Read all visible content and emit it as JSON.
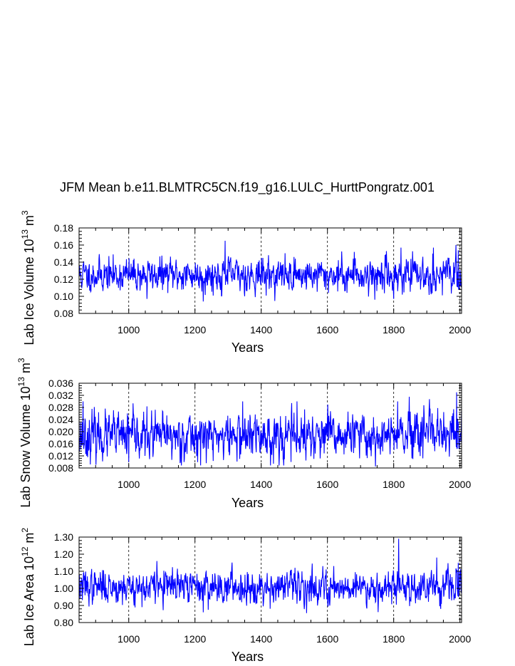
{
  "title": "JFM Mean b.e11.BLMTRC5CN.f19_g16.LULC_HurttPongratz.001",
  "line_color": "#0000ff",
  "chart_data": [
    {
      "type": "line",
      "xlabel": "Years",
      "ylabel_main": "Lab Ice Volume 10",
      "ylabel_exp": "13",
      "ylabel_unit": " m",
      "ylabel_unit_exp": "3",
      "xlim": [
        850,
        2005
      ],
      "ylim": [
        0.08,
        0.18
      ],
      "xticks": [
        1000,
        1200,
        1400,
        1600,
        1800,
        2000
      ],
      "yticks": [
        "0.08",
        "0.10",
        "0.12",
        "0.14",
        "0.16",
        "0.18"
      ],
      "grid_x": true,
      "series": [
        {
          "name": "Lab Ice Volume",
          "mean": 0.125,
          "std": 0.009,
          "x_start": 850,
          "x_end": 2005,
          "seed": 11,
          "peaks": [
            [
              1291,
              0.165
            ],
            [
              1822,
              0.157
            ],
            [
              1920,
              0.157
            ],
            [
              1995,
              0.154
            ],
            [
              1681,
              0.152
            ],
            [
              1225,
              0.094
            ],
            [
              1743,
              0.096
            ],
            [
              1800,
              0.097
            ],
            [
              1055,
              0.097
            ]
          ]
        }
      ]
    },
    {
      "type": "line",
      "xlabel": "Years",
      "ylabel_main": "Lab Snow Volume 10",
      "ylabel_exp": "13",
      "ylabel_unit": " m",
      "ylabel_unit_exp": "3",
      "xlim": [
        850,
        2005
      ],
      "ylim": [
        0.008,
        0.036
      ],
      "xticks": [
        1000,
        1200,
        1400,
        1600,
        1800,
        2000
      ],
      "yticks": [
        "0.008",
        "0.012",
        "0.016",
        "0.020",
        "0.024",
        "0.028",
        "0.032",
        "0.036"
      ],
      "grid_x": true,
      "series": [
        {
          "name": "Lab Snow Volume",
          "mean": 0.0185,
          "std": 0.0035,
          "x_start": 850,
          "x_end": 2005,
          "seed": 23,
          "peaks": [
            [
              1990,
              0.033
            ],
            [
              1812,
              0.03
            ],
            [
              1508,
              0.03
            ],
            [
              1344,
              0.03
            ],
            [
              862,
              0.03
            ],
            [
              1745,
              0.0085
            ],
            [
              1490,
              0.01
            ],
            [
              1000,
              0.01
            ]
          ]
        }
      ]
    },
    {
      "type": "line",
      "xlabel": "Years",
      "ylabel_main": "Lab Ice Area 10",
      "ylabel_exp": "12",
      "ylabel_unit": " m",
      "ylabel_unit_exp": "2",
      "xlim": [
        850,
        2005
      ],
      "ylim": [
        0.8,
        1.3
      ],
      "xticks": [
        1000,
        1200,
        1400,
        1600,
        1800,
        2000
      ],
      "yticks": [
        "0.80",
        "0.90",
        "1.00",
        "1.10",
        "1.20",
        "1.30"
      ],
      "grid_x": true,
      "series": [
        {
          "name": "Lab Ice Area",
          "mean": 1.01,
          "std": 0.045,
          "x_start": 850,
          "x_end": 2005,
          "seed": 37,
          "peaks": [
            [
              1815,
              1.29
            ],
            [
              1930,
              1.18
            ],
            [
              1085,
              1.16
            ],
            [
              1995,
              1.15
            ],
            [
              1225,
              0.86
            ],
            [
              1040,
              0.89
            ]
          ]
        }
      ]
    }
  ]
}
